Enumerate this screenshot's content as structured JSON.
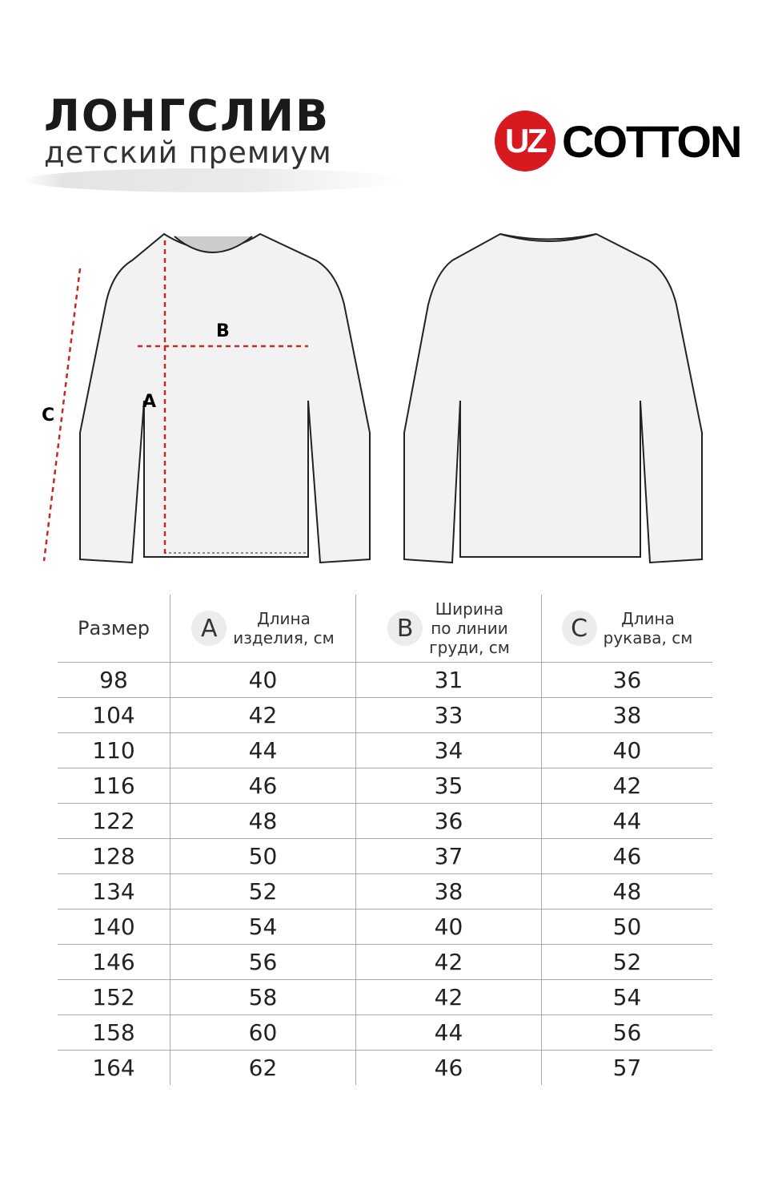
{
  "header": {
    "title": "ЛОНГСЛИВ",
    "subtitle": "детский премиум"
  },
  "logo": {
    "mark": "UZ",
    "text": "COTTON",
    "color": "#d71920"
  },
  "diagram": {
    "labels": {
      "a": "A",
      "b": "B",
      "c": "C"
    },
    "measure_color": "#c62828"
  },
  "table": {
    "headers": [
      {
        "badge": "",
        "label": "Размер"
      },
      {
        "badge": "A",
        "label": "Длина\nизделия, см"
      },
      {
        "badge": "B",
        "label": "Ширина\nпо линии\nгруди, см"
      },
      {
        "badge": "C",
        "label": "Длина\nрукава, см"
      }
    ],
    "rows": [
      [
        "98",
        "40",
        "31",
        "36"
      ],
      [
        "104",
        "42",
        "33",
        "38"
      ],
      [
        "110",
        "44",
        "34",
        "40"
      ],
      [
        "116",
        "46",
        "35",
        "42"
      ],
      [
        "122",
        "48",
        "36",
        "44"
      ],
      [
        "128",
        "50",
        "37",
        "46"
      ],
      [
        "134",
        "52",
        "38",
        "48"
      ],
      [
        "140",
        "54",
        "40",
        "50"
      ],
      [
        "146",
        "56",
        "42",
        "52"
      ],
      [
        "152",
        "58",
        "42",
        "54"
      ],
      [
        "158",
        "60",
        "44",
        "56"
      ],
      [
        "164",
        "62",
        "46",
        "57"
      ]
    ]
  }
}
